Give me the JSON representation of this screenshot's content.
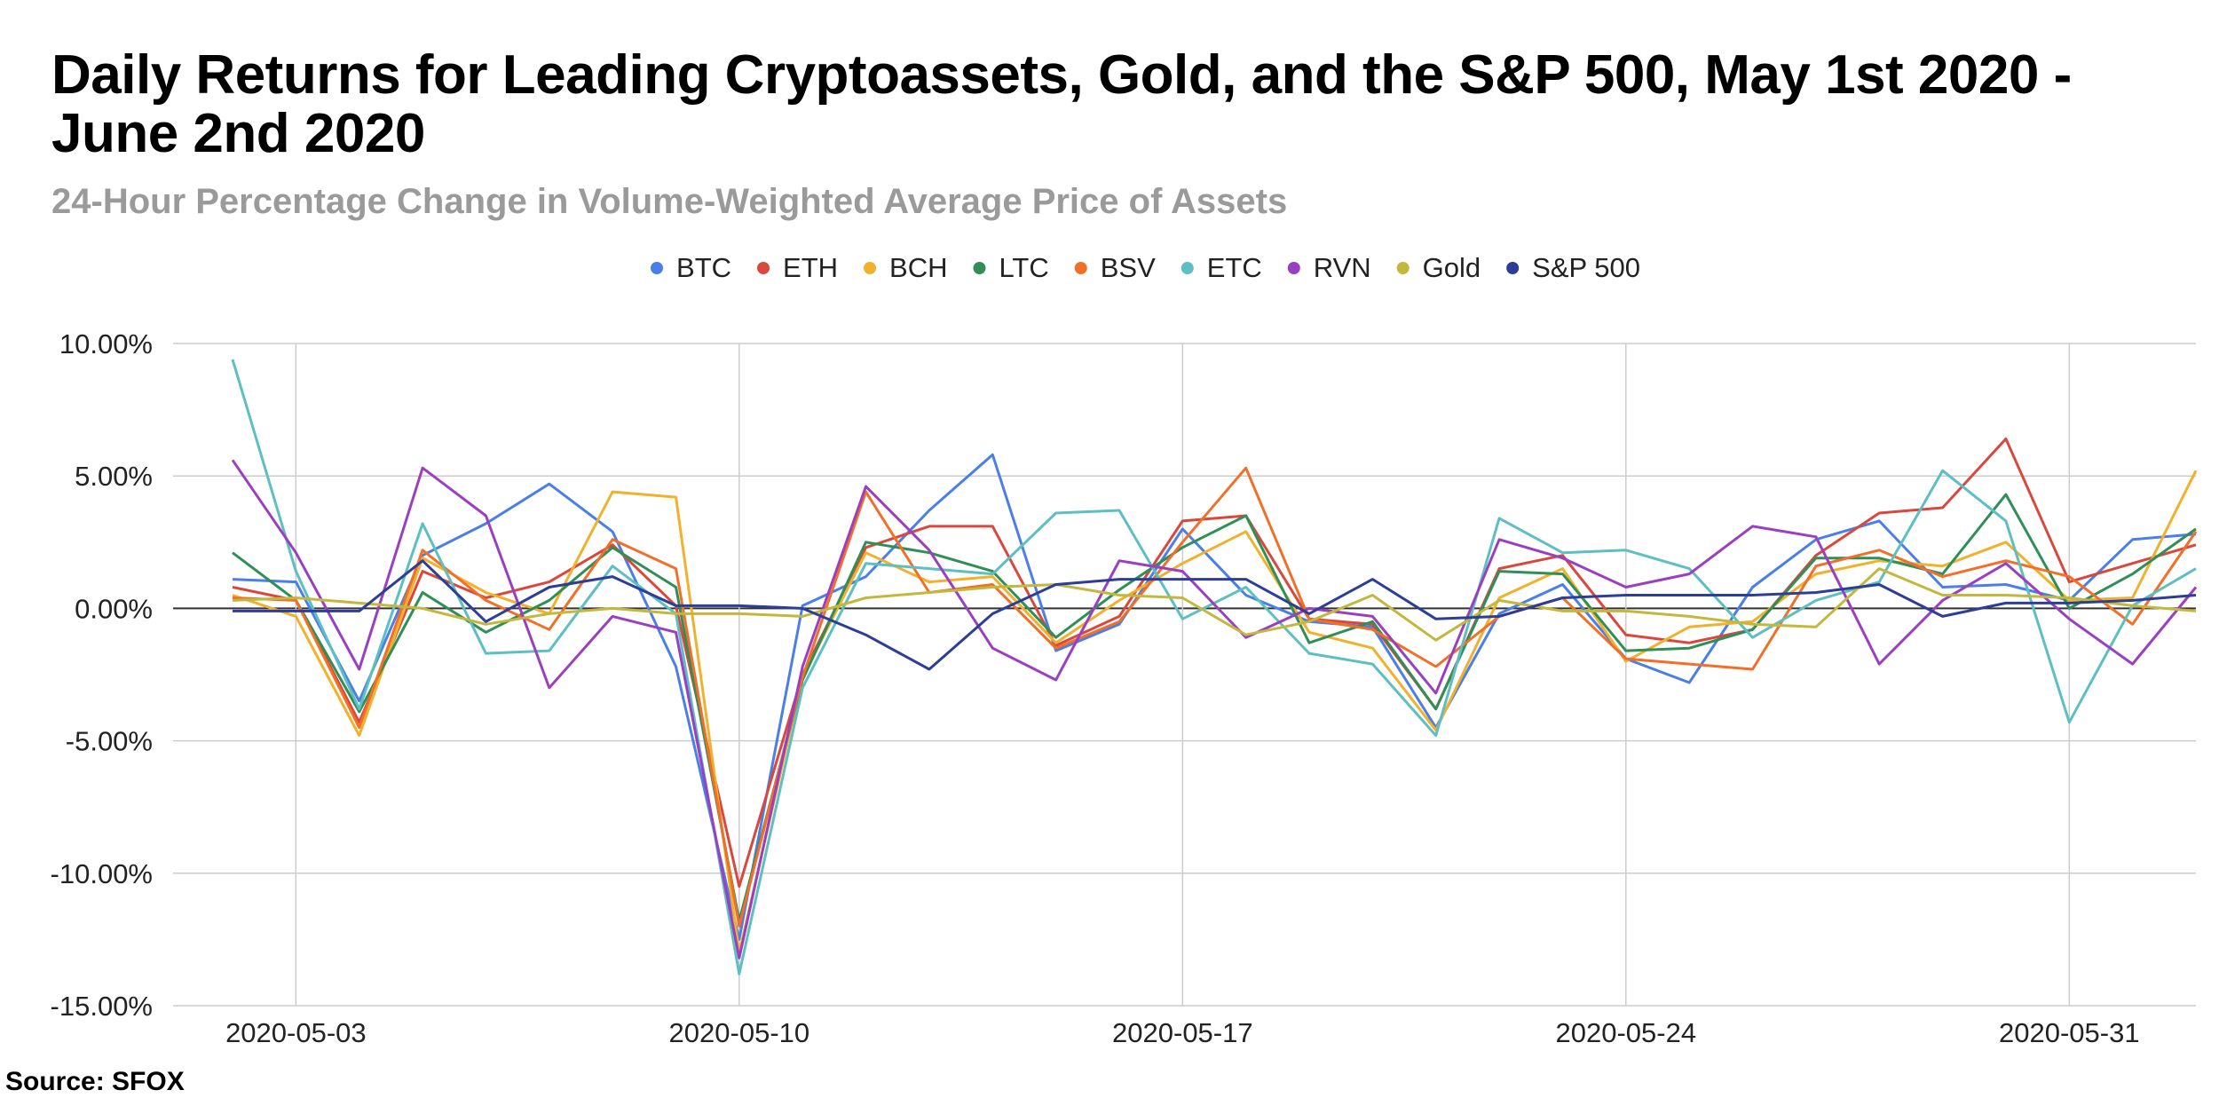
{
  "colors": {
    "BTC": "#4a7ee8",
    "ETH": "#d9473d",
    "BCH": "#f2b12c",
    "LTC": "#2f8f56",
    "BSV": "#f26f27",
    "ETC": "#5dbfc1",
    "RVN": "#9b3fc1",
    "Gold": "#c4b73e",
    "S&P 500": "#2c3e98"
  },
  "chart_data": {
    "type": "line",
    "title": "Daily Returns for Leading Cryptoassets, Gold, and the S&P 500, May 1st 2020 - June 2nd 2020",
    "subtitle": "24-Hour Percentage Change in Volume-Weighted Average Price of Assets",
    "source": "Source: SFOX",
    "xlabel": "",
    "ylabel": "",
    "ylim": [
      -15,
      10
    ],
    "yticks": [
      "10.00%",
      "5.00%",
      "0.00%",
      "-5.00%",
      "-10.00%",
      "-15.00%"
    ],
    "xticks": [
      "2020-05-03",
      "2020-05-10",
      "2020-05-17",
      "2020-05-24",
      "2020-05-31"
    ],
    "grid": true,
    "legend_position": "top",
    "x": [
      "2020-05-02",
      "2020-05-03",
      "2020-05-04",
      "2020-05-05",
      "2020-05-06",
      "2020-05-07",
      "2020-05-08",
      "2020-05-09",
      "2020-05-10",
      "2020-05-11",
      "2020-05-12",
      "2020-05-13",
      "2020-05-14",
      "2020-05-15",
      "2020-05-16",
      "2020-05-17",
      "2020-05-18",
      "2020-05-19",
      "2020-05-20",
      "2020-05-21",
      "2020-05-22",
      "2020-05-23",
      "2020-05-24",
      "2020-05-25",
      "2020-05-26",
      "2020-05-27",
      "2020-05-28",
      "2020-05-29",
      "2020-05-30",
      "2020-05-31",
      "2020-06-01",
      "2020-06-02"
    ],
    "series": [
      {
        "name": "BTC",
        "values": [
          1.1,
          1.0,
          -3.5,
          2.0,
          3.2,
          4.7,
          2.9,
          -2.2,
          -12.5,
          0.1,
          1.2,
          3.7,
          5.8,
          -1.6,
          -0.6,
          3.0,
          0.5,
          -0.5,
          -0.7,
          -4.5,
          -0.2,
          0.9,
          -1.9,
          -2.8,
          0.8,
          2.6,
          3.3,
          0.8,
          0.9,
          0.3,
          2.6,
          2.8
        ]
      },
      {
        "name": "ETH",
        "values": [
          0.8,
          0.3,
          -4.3,
          1.4,
          0.4,
          1.0,
          2.4,
          0.1,
          -10.5,
          -2.5,
          2.3,
          3.1,
          3.1,
          -1.4,
          -0.3,
          3.3,
          3.5,
          -0.4,
          -0.6,
          -3.8,
          1.5,
          2.0,
          -1.0,
          -1.3,
          -0.8,
          2.0,
          3.6,
          3.8,
          6.4,
          1.0,
          1.7,
          2.4
        ]
      },
      {
        "name": "BCH",
        "values": [
          0.5,
          -0.3,
          -4.8,
          1.9,
          0.6,
          -0.2,
          4.4,
          4.2,
          -13.0,
          -2.6,
          2.1,
          1.0,
          1.2,
          -1.3,
          0.3,
          1.7,
          2.9,
          -0.9,
          -1.5,
          -4.6,
          0.4,
          1.5,
          -2.0,
          -0.7,
          -0.5,
          1.3,
          1.8,
          1.6,
          2.5,
          0.3,
          0.4,
          5.2
        ]
      },
      {
        "name": "LTC",
        "values": [
          2.1,
          0.3,
          -3.9,
          0.6,
          -0.9,
          0.3,
          2.3,
          0.8,
          -11.8,
          -2.7,
          2.5,
          2.1,
          1.4,
          -1.1,
          0.7,
          2.3,
          3.5,
          -1.3,
          -0.5,
          -3.8,
          1.4,
          1.3,
          -1.6,
          -1.5,
          -0.8,
          1.9,
          1.9,
          1.3,
          4.3,
          0.0,
          1.3,
          3.0
        ]
      },
      {
        "name": "BSV",
        "values": [
          0.4,
          0.3,
          -4.5,
          2.2,
          0.3,
          -0.8,
          2.6,
          1.5,
          -12.0,
          -2.6,
          4.4,
          0.6,
          0.9,
          -1.5,
          -0.5,
          2.5,
          5.3,
          -0.4,
          -0.8,
          -2.2,
          -0.3,
          0.4,
          -1.9,
          -2.1,
          -2.3,
          1.6,
          2.2,
          1.2,
          1.8,
          1.2,
          -0.6,
          2.9
        ]
      },
      {
        "name": "ETC",
        "values": [
          9.4,
          1.4,
          -3.8,
          3.2,
          -1.7,
          -1.6,
          1.6,
          -0.2,
          -13.8,
          -3.0,
          1.7,
          1.5,
          1.3,
          3.6,
          3.7,
          -0.4,
          0.8,
          -1.7,
          -2.1,
          -4.8,
          3.4,
          2.1,
          2.2,
          1.5,
          -1.1,
          0.3,
          1.0,
          5.2,
          3.3,
          -4.3,
          0.1,
          1.5
        ]
      },
      {
        "name": "RVN",
        "values": [
          5.6,
          2.1,
          -2.3,
          5.3,
          3.5,
          -3.0,
          -0.3,
          -0.9,
          -13.2,
          -2.2,
          4.6,
          2.2,
          -1.5,
          -2.7,
          1.8,
          1.4,
          -1.1,
          0.0,
          -0.3,
          -3.2,
          2.6,
          1.9,
          0.8,
          1.3,
          3.1,
          2.7,
          -2.1,
          0.3,
          1.7,
          -0.4,
          -2.1,
          0.8
        ]
      },
      {
        "name": "Gold",
        "values": [
          0.3,
          0.4,
          0.2,
          0.0,
          -0.6,
          -0.2,
          0.0,
          -0.2,
          -0.2,
          -0.3,
          0.4,
          0.6,
          0.8,
          0.9,
          0.5,
          0.4,
          -1.0,
          -0.5,
          0.5,
          -1.2,
          0.3,
          -0.1,
          -0.1,
          -0.3,
          -0.6,
          -0.7,
          1.5,
          0.5,
          0.5,
          0.4,
          0.1,
          -0.1
        ]
      },
      {
        "name": "S&P 500",
        "values": [
          -0.1,
          -0.1,
          -0.1,
          1.8,
          -0.5,
          0.8,
          1.2,
          0.1,
          0.1,
          0.0,
          -1.0,
          -2.3,
          -0.2,
          0.9,
          1.1,
          1.1,
          1.1,
          -0.2,
          1.1,
          -0.4,
          -0.3,
          0.4,
          0.5,
          0.5,
          0.5,
          0.6,
          0.9,
          -0.3,
          0.2,
          0.2,
          0.3,
          0.5
        ]
      }
    ]
  }
}
